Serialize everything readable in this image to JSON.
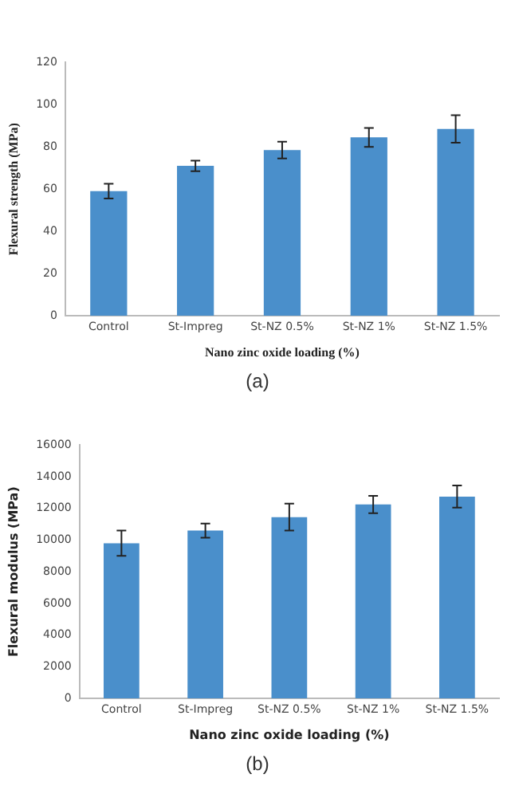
{
  "chart_data": [
    {
      "type": "bar",
      "xlabel": "Nano zinc oxide loading (%)",
      "ylabel": "Flexural strength (MPa)",
      "categories": [
        "Control",
        "St-Impreg",
        "St-NZ 0.5%",
        "St-NZ 1%",
        "St-NZ 1.5%"
      ],
      "series": [
        {
          "color": "#4a8fcb",
          "values": [
            59,
            71,
            78.5,
            84.5,
            88.5
          ],
          "errors": [
            3.5,
            2.5,
            4,
            4.5,
            6.5
          ]
        }
      ],
      "ylim": [
        0,
        120
      ],
      "yticks": [
        0,
        20,
        40,
        60,
        80,
        100,
        120
      ],
      "grid": false,
      "legend": false,
      "annotations": [
        "(a)"
      ]
    },
    {
      "type": "bar",
      "xlabel": "Nano zinc oxide loading (%)",
      "ylabel": "Flexural modulus (MPa)",
      "categories": [
        "Control",
        "St-Impreg",
        "St-NZ 0.5%",
        "St-NZ 1%",
        "St-NZ 1.5%"
      ],
      "series": [
        {
          "color": "#4a8fcb",
          "values": [
            9800,
            10600,
            11450,
            12250,
            12750
          ],
          "errors": [
            800,
            450,
            850,
            550,
            700
          ]
        }
      ],
      "ylim": [
        0,
        16000
      ],
      "yticks": [
        0,
        2000,
        4000,
        6000,
        8000,
        10000,
        12000,
        14000,
        16000
      ],
      "grid": false,
      "legend": false,
      "annotations": [
        "(b)"
      ]
    }
  ]
}
